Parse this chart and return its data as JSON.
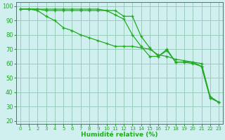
{
  "title": "",
  "xlabel": "Humidité relative (%)",
  "ylabel": "",
  "background_color": "#cff0ee",
  "grid_color": "#99ccbb",
  "line_color": "#22aa22",
  "xlim": [
    -0.5,
    23.5
  ],
  "ylim": [
    18,
    103
  ],
  "yticks": [
    20,
    30,
    40,
    50,
    60,
    70,
    80,
    90,
    100
  ],
  "xticks": [
    0,
    1,
    2,
    3,
    4,
    5,
    6,
    7,
    8,
    9,
    10,
    11,
    12,
    13,
    14,
    15,
    16,
    17,
    18,
    19,
    20,
    21,
    22,
    23
  ],
  "series": [
    [
      98,
      98,
      98,
      98,
      98,
      98,
      98,
      98,
      98,
      98,
      97,
      97,
      93,
      93,
      79,
      71,
      65,
      69,
      61,
      61,
      61,
      58,
      36,
      33
    ],
    [
      98,
      98,
      98,
      97,
      97,
      97,
      97,
      97,
      97,
      97,
      97,
      94,
      91,
      80,
      72,
      65,
      65,
      70,
      61,
      61,
      60,
      58,
      36,
      33
    ],
    [
      98,
      98,
      97,
      93,
      90,
      85,
      83,
      80,
      78,
      76,
      74,
      72,
      72,
      72,
      71,
      70,
      66,
      65,
      63,
      62,
      61,
      60,
      37,
      33
    ]
  ]
}
